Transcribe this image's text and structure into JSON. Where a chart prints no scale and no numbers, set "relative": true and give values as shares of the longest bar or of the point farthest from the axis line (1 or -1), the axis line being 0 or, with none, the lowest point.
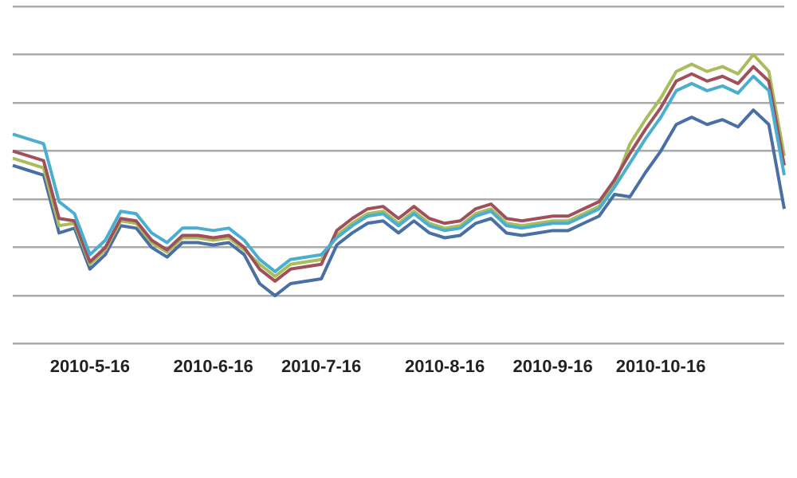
{
  "chart_data": {
    "type": "line",
    "relative": true,
    "grid": "y",
    "legend": false,
    "marker": "none",
    "line_style": "solid",
    "categories": [
      null,
      null,
      null,
      null,
      null,
      "2010-5-16",
      null,
      null,
      null,
      null,
      null,
      null,
      null,
      "2010-6-16",
      null,
      null,
      null,
      null,
      null,
      null,
      "2010-7-16",
      null,
      null,
      null,
      null,
      null,
      null,
      null,
      "2010-8-16",
      null,
      null,
      null,
      null,
      null,
      null,
      "2010-9-16",
      null,
      null,
      null,
      null,
      null,
      null,
      "2010-10-16",
      null,
      null,
      null,
      null,
      null,
      null,
      null,
      null
    ],
    "series": [
      {
        "color": "#4aaed0",
        "values": [
          0.67,
          0.65,
          0.63,
          0.39,
          0.34,
          0.17,
          0.23,
          0.35,
          0.34,
          0.26,
          0.22,
          0.28,
          0.28,
          0.27,
          0.28,
          0.23,
          0.15,
          0.1,
          0.15,
          0.16,
          0.17,
          0.24,
          0.29,
          0.33,
          0.34,
          0.29,
          0.34,
          0.29,
          0.27,
          0.28,
          0.33,
          0.35,
          0.29,
          0.28,
          0.29,
          0.3,
          0.3,
          0.33,
          0.36,
          0.45,
          0.55,
          0.65,
          0.74,
          0.85,
          0.88,
          0.85,
          0.87,
          0.84,
          0.91,
          0.85,
          0.5
        ]
      },
      {
        "color": "#a0505a",
        "values": [
          0.6,
          0.58,
          0.56,
          0.32,
          0.31,
          0.14,
          0.2,
          0.32,
          0.31,
          0.23,
          0.19,
          0.25,
          0.25,
          0.24,
          0.25,
          0.2,
          0.11,
          0.06,
          0.11,
          0.12,
          0.13,
          0.27,
          0.32,
          0.36,
          0.37,
          0.32,
          0.37,
          0.32,
          0.3,
          0.31,
          0.36,
          0.38,
          0.32,
          0.31,
          0.32,
          0.33,
          0.33,
          0.36,
          0.39,
          0.48,
          0.59,
          0.69,
          0.78,
          0.89,
          0.92,
          0.89,
          0.91,
          0.88,
          0.95,
          0.89,
          0.54
        ]
      },
      {
        "color": "#a9bd5c",
        "values": [
          0.57,
          0.55,
          0.53,
          0.29,
          0.3,
          0.13,
          0.19,
          0.31,
          0.3,
          0.22,
          0.18,
          0.24,
          0.24,
          0.23,
          0.24,
          0.19,
          0.13,
          0.08,
          0.13,
          0.14,
          0.15,
          0.25,
          0.3,
          0.34,
          0.35,
          0.3,
          0.35,
          0.3,
          0.28,
          0.29,
          0.34,
          0.36,
          0.3,
          0.29,
          0.3,
          0.31,
          0.31,
          0.34,
          0.37,
          0.46,
          0.63,
          0.73,
          0.82,
          0.93,
          0.96,
          0.93,
          0.95,
          0.92,
          1.0,
          0.93,
          0.58
        ]
      },
      {
        "color": "#4a6fa5",
        "values": [
          0.54,
          0.52,
          0.5,
          0.26,
          0.28,
          0.11,
          0.17,
          0.29,
          0.28,
          0.2,
          0.16,
          0.22,
          0.22,
          0.21,
          0.22,
          0.17,
          0.05,
          0.0,
          0.05,
          0.06,
          0.07,
          0.21,
          0.26,
          0.3,
          0.31,
          0.26,
          0.31,
          0.26,
          0.24,
          0.25,
          0.3,
          0.32,
          0.26,
          0.25,
          0.26,
          0.27,
          0.27,
          0.3,
          0.33,
          0.42,
          0.41,
          0.51,
          0.6,
          0.71,
          0.74,
          0.71,
          0.73,
          0.7,
          0.77,
          0.71,
          0.36
        ]
      }
    ]
  }
}
